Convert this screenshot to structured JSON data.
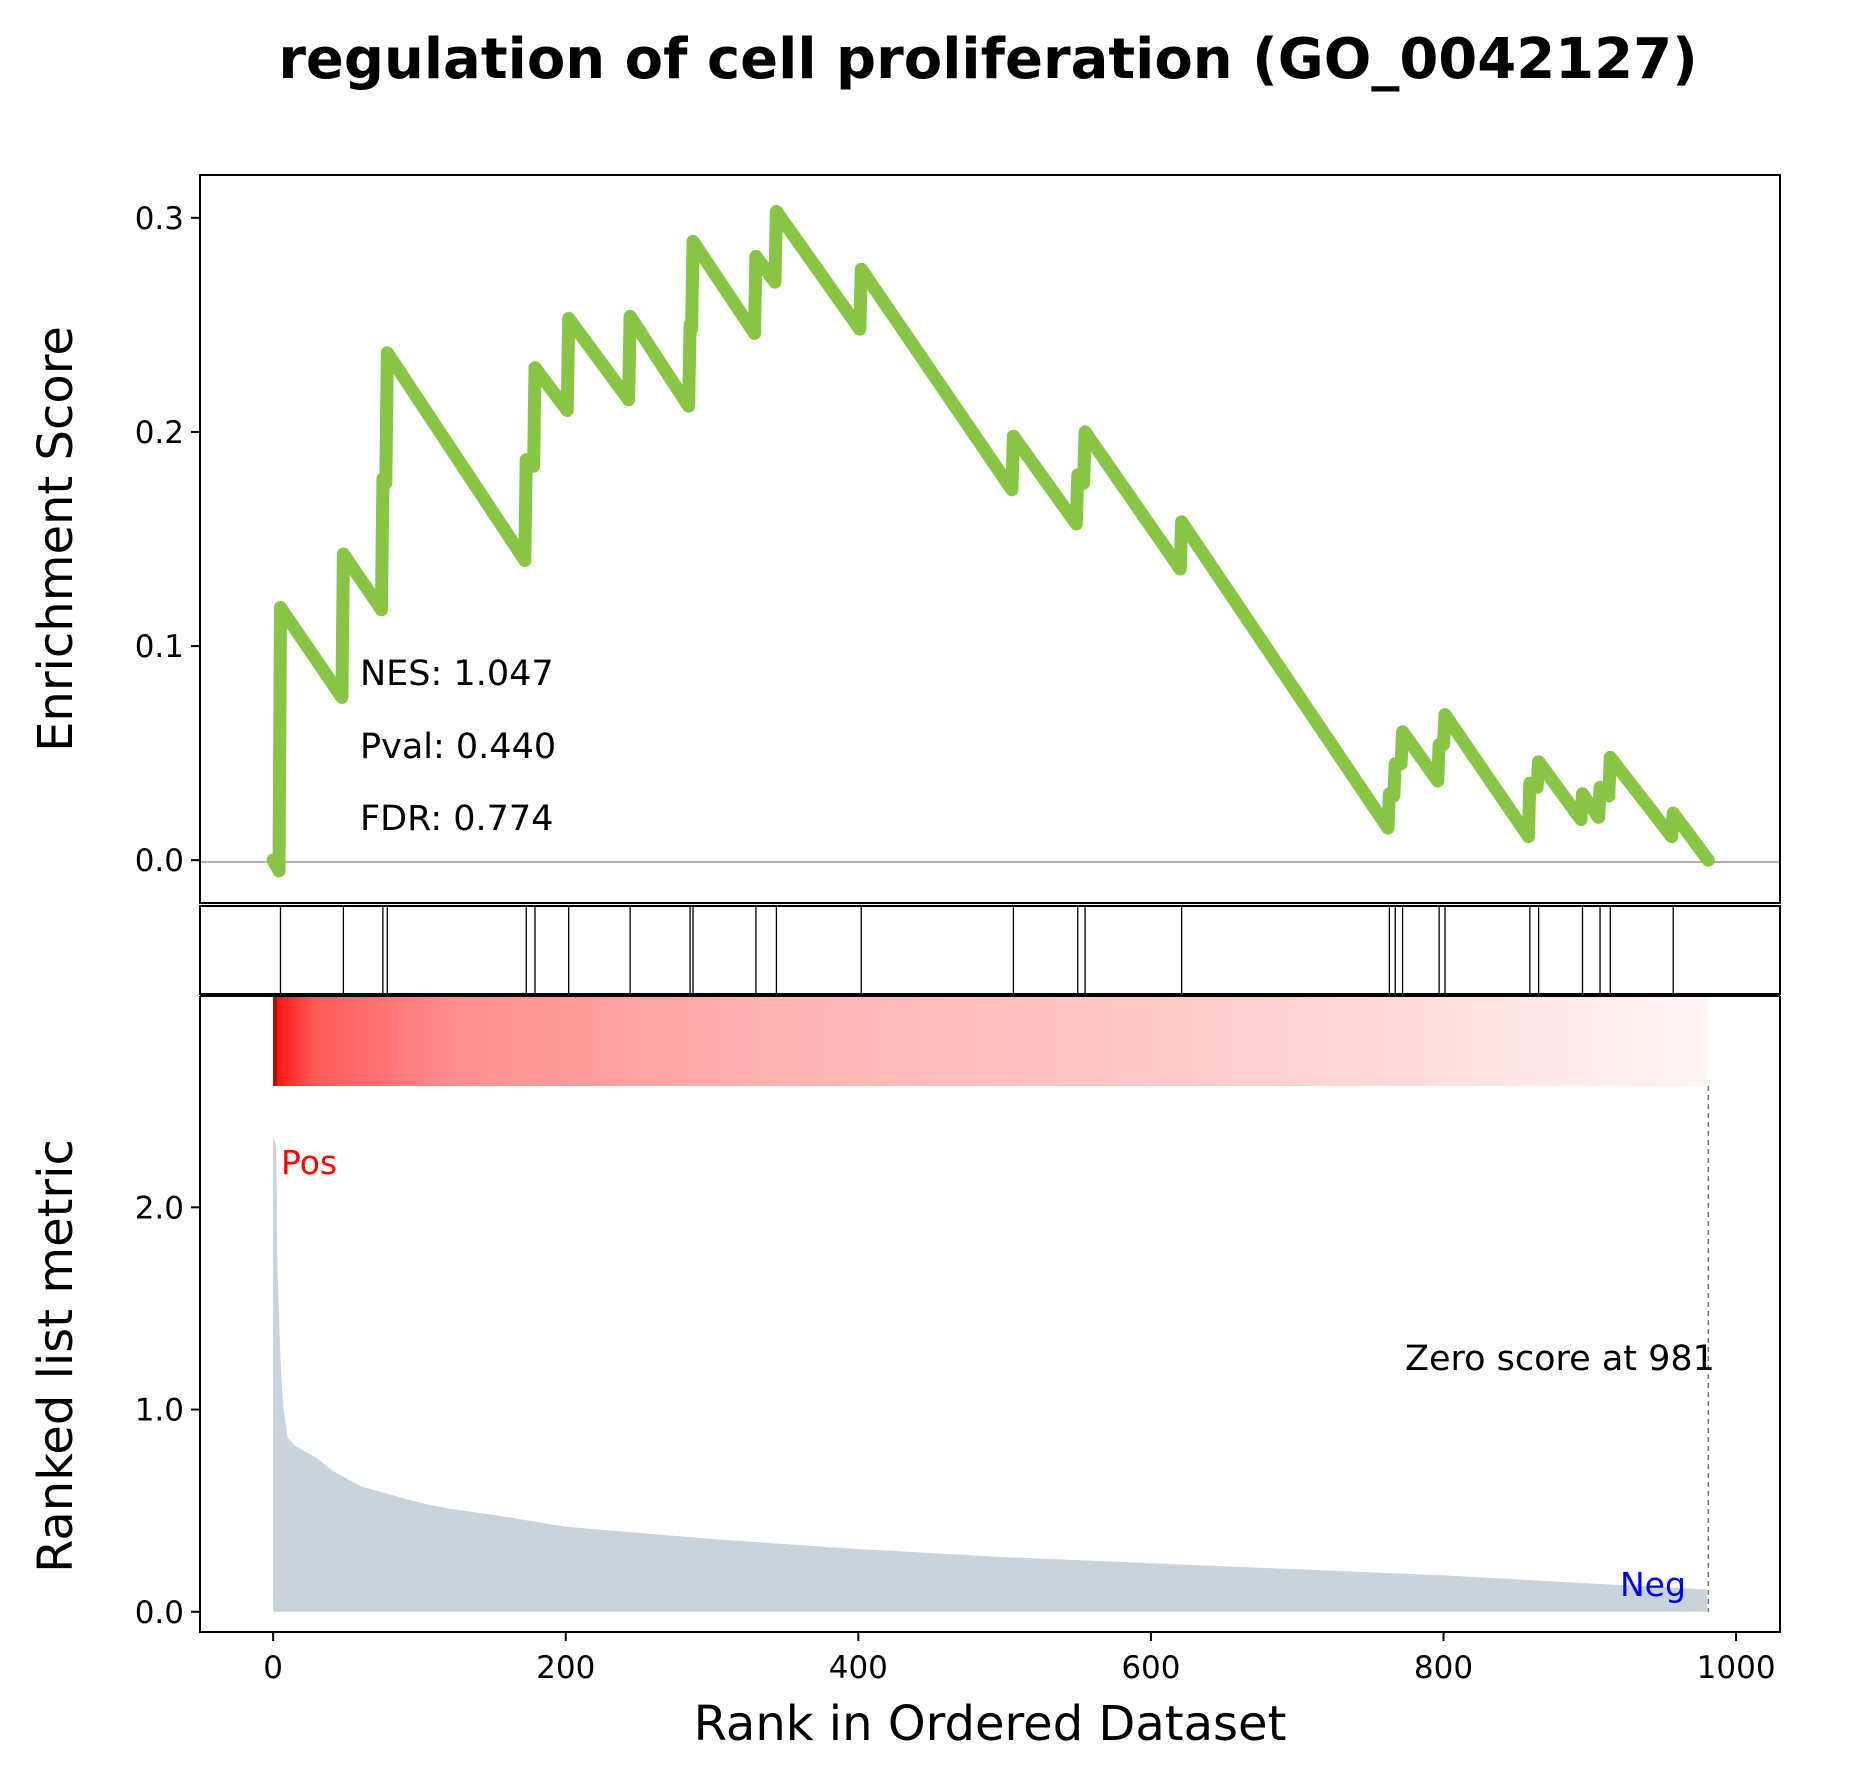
{
  "chart_data": {
    "type": "line",
    "title": "regulation of cell proliferation (GO_0042127)",
    "xlabel": "Rank in Ordered Dataset",
    "xlim": [
      -50,
      1030
    ],
    "x_ticks": [
      0,
      200,
      400,
      600,
      800,
      1000
    ],
    "x_tick_labels": [
      "0",
      "200",
      "400",
      "600",
      "800",
      "1000"
    ],
    "enrichment_panel": {
      "ylabel": "Enrichment Score",
      "ylim": [
        -0.02,
        0.32
      ],
      "y_ticks": [
        0.0,
        0.1,
        0.2,
        0.3
      ],
      "y_tick_labels": [
        "0.0",
        "0.1",
        "0.2",
        "0.3"
      ],
      "color": "#88c544",
      "running_es": {
        "x": [
          0,
          4,
          5,
          47,
          48,
          74,
          75,
          77,
          78,
          172,
          173,
          178,
          179,
          201,
          202,
          243,
          244,
          284,
          285,
          286,
          287,
          329,
          330,
          343,
          344,
          401,
          402,
          505,
          506,
          549,
          550,
          554,
          555,
          620,
          621,
          762,
          763,
          766,
          767,
          771,
          772,
          796,
          797,
          800,
          801,
          858,
          859,
          864,
          865,
          894,
          895,
          906,
          907,
          913,
          914,
          956,
          957,
          981
        ],
        "y": [
          0.0,
          -0.005,
          0.118,
          0.076,
          0.143,
          0.117,
          0.178,
          0.176,
          0.237,
          0.14,
          0.187,
          0.184,
          0.23,
          0.21,
          0.253,
          0.215,
          0.254,
          0.212,
          0.25,
          0.248,
          0.289,
          0.246,
          0.282,
          0.27,
          0.303,
          0.248,
          0.276,
          0.173,
          0.198,
          0.157,
          0.18,
          0.176,
          0.2,
          0.136,
          0.158,
          0.015,
          0.031,
          0.03,
          0.045,
          0.045,
          0.06,
          0.037,
          0.054,
          0.054,
          0.068,
          0.011,
          0.036,
          0.034,
          0.046,
          0.019,
          0.031,
          0.02,
          0.034,
          0.03,
          0.048,
          0.011,
          0.022,
          0.0
        ]
      },
      "stats": {
        "nes": "NES: 1.047",
        "pval": "Pval: 0.440",
        "fdr": "FDR: 0.774"
      }
    },
    "hits_panel": {
      "hit_ranks": [
        5,
        48,
        75,
        78,
        173,
        179,
        202,
        244,
        285,
        287,
        330,
        344,
        402,
        506,
        550,
        555,
        621,
        763,
        767,
        772,
        797,
        801,
        859,
        865,
        895,
        907,
        914,
        957
      ]
    },
    "ranked_panel": {
      "ylabel": "Ranked list metric",
      "ylim": [
        -0.1,
        2.6
      ],
      "y_ticks": [
        0.0,
        1.0,
        2.0
      ],
      "y_tick_labels": [
        "0.0",
        "1.0",
        "2.0"
      ],
      "fill_color": "#c8d3dc",
      "metric": {
        "x": [
          0,
          2,
          3,
          5,
          7,
          10,
          15,
          20,
          30,
          40,
          50,
          60,
          80,
          100,
          120,
          150,
          200,
          250,
          300,
          400,
          500,
          600,
          700,
          800,
          900,
          980
        ],
        "y": [
          2.35,
          2.3,
          1.7,
          1.25,
          1.0,
          0.86,
          0.82,
          0.8,
          0.76,
          0.7,
          0.66,
          0.62,
          0.58,
          0.54,
          0.51,
          0.48,
          0.42,
          0.39,
          0.36,
          0.31,
          0.27,
          0.24,
          0.21,
          0.18,
          0.14,
          0.11
        ]
      },
      "pos_label": "Pos",
      "neg_label": "Neg",
      "pos_color": "#ff0000",
      "neg_color": "#0000ff",
      "zero_score_text": "Zero score at 981",
      "zero_score_x": 981
    }
  }
}
